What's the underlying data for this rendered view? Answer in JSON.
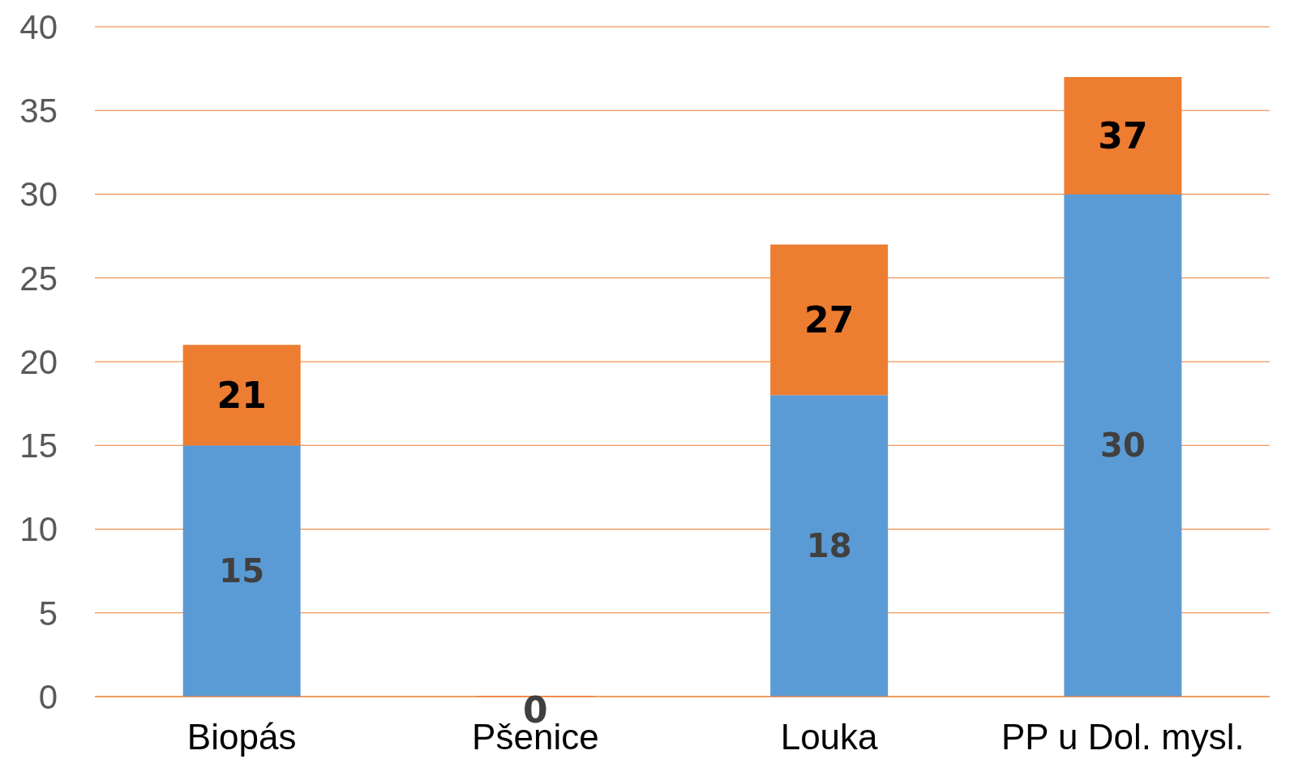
{
  "chart_data": {
    "type": "bar",
    "stacked": true,
    "categories": [
      "Biopás",
      "Pšenice",
      "Louka",
      "PP u Dol. mysl."
    ],
    "series": [
      {
        "color": "#5b9bd5",
        "values": [
          15,
          0,
          18,
          30
        ],
        "value_labels": [
          "15",
          null,
          "18",
          "30"
        ]
      },
      {
        "color": "#ed7d31",
        "values": [
          6,
          0,
          9,
          7
        ]
      }
    ],
    "totals": [
      "21",
      "0",
      "27",
      "37"
    ],
    "ylim": [
      0,
      40
    ],
    "yticks": [
      0,
      5,
      10,
      15,
      20,
      25,
      30,
      35,
      40
    ],
    "grid": "y",
    "legend": false
  }
}
